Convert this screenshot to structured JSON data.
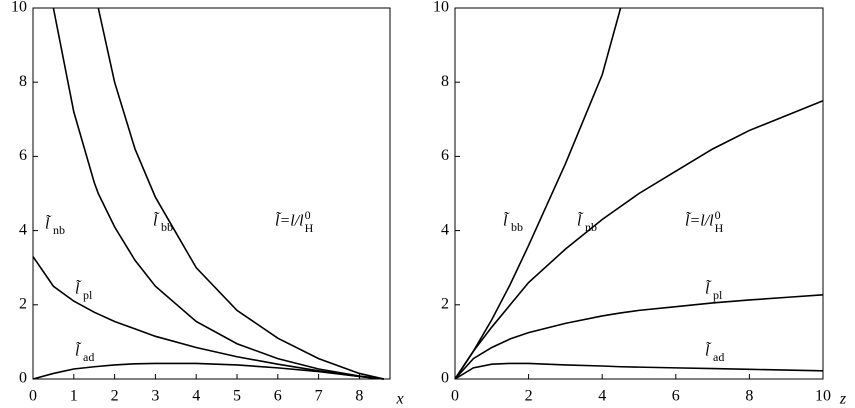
{
  "chart_data": [
    {
      "type": "line",
      "x_label": "x",
      "x": [
        0,
        0.5,
        1,
        1.5,
        1.6,
        2,
        2.5,
        3,
        4,
        5,
        6,
        7,
        8,
        8.6
      ],
      "xlim": [
        0,
        8.75
      ],
      "xticks": [
        0,
        1,
        2,
        3,
        4,
        5,
        6,
        7,
        8
      ],
      "ylim": [
        0,
        10
      ],
      "yticks": [
        0,
        2,
        4,
        6,
        8,
        10
      ],
      "annotation": {
        "text": "l̃=l/l",
        "sub": "H",
        "sup": "0"
      },
      "series": [
        {
          "name": {
            "text": "l̃",
            "sub": "nb"
          },
          "color": "#000000",
          "values": [
            null,
            10,
            7.2,
            5.3,
            5.0,
            4.1,
            3.2,
            2.5,
            1.55,
            0.95,
            0.55,
            0.27,
            0.08,
            0
          ]
        },
        {
          "name": {
            "text": "l̃",
            "sub": "bb"
          },
          "color": "#000000",
          "values": [
            null,
            null,
            null,
            null,
            10,
            8,
            6.2,
            4.9,
            3.0,
            1.85,
            1.1,
            0.55,
            0.15,
            0
          ]
        },
        {
          "name": {
            "text": "l̃",
            "sub": "pl"
          },
          "color": "#000000",
          "values": [
            3.3,
            2.5,
            2.1,
            1.8,
            1.75,
            1.55,
            1.35,
            1.15,
            0.85,
            0.6,
            0.4,
            0.22,
            0.07,
            0
          ]
        },
        {
          "name": {
            "text": "l̃",
            "sub": "ad"
          },
          "color": "#000000",
          "values": [
            0,
            0.15,
            0.27,
            0.33,
            0.34,
            0.38,
            0.41,
            0.42,
            0.42,
            0.38,
            0.3,
            0.2,
            0.07,
            0
          ]
        }
      ]
    },
    {
      "type": "line",
      "x_label": "z",
      "x": [
        0,
        0.5,
        1,
        1.5,
        2,
        3,
        4,
        4.5,
        5,
        6,
        7,
        8,
        9,
        10
      ],
      "xlim": [
        0,
        10
      ],
      "xticks": [
        0,
        2,
        4,
        6,
        8,
        10
      ],
      "ylim": [
        0,
        10
      ],
      "yticks": [
        0,
        2,
        4,
        6,
        8,
        10
      ],
      "annotation": {
        "text": "l̃=l/l",
        "sub": "H",
        "sup": "0"
      },
      "series": [
        {
          "name": {
            "text": "l̃",
            "sub": "bb"
          },
          "color": "#000000",
          "values": [
            0,
            0.75,
            1.6,
            2.55,
            3.6,
            5.8,
            8.2,
            10,
            null,
            null,
            null,
            null,
            null,
            null
          ]
        },
        {
          "name": {
            "text": "l̃",
            "sub": "nb"
          },
          "color": "#000000",
          "values": [
            0,
            0.75,
            1.4,
            2.0,
            2.6,
            3.5,
            4.3,
            4.65,
            5.0,
            5.6,
            6.2,
            6.7,
            7.1,
            7.5
          ]
        },
        {
          "name": {
            "text": "l̃",
            "sub": "pl"
          },
          "color": "#000000",
          "values": [
            0,
            0.55,
            0.85,
            1.08,
            1.25,
            1.5,
            1.7,
            1.78,
            1.85,
            1.95,
            2.05,
            2.13,
            2.2,
            2.27
          ]
        },
        {
          "name": {
            "text": "l̃",
            "sub": "ad"
          },
          "color": "#000000",
          "values": [
            0,
            0.3,
            0.4,
            0.42,
            0.42,
            0.38,
            0.35,
            0.33,
            0.32,
            0.3,
            0.28,
            0.26,
            0.24,
            0.22
          ]
        }
      ]
    }
  ]
}
